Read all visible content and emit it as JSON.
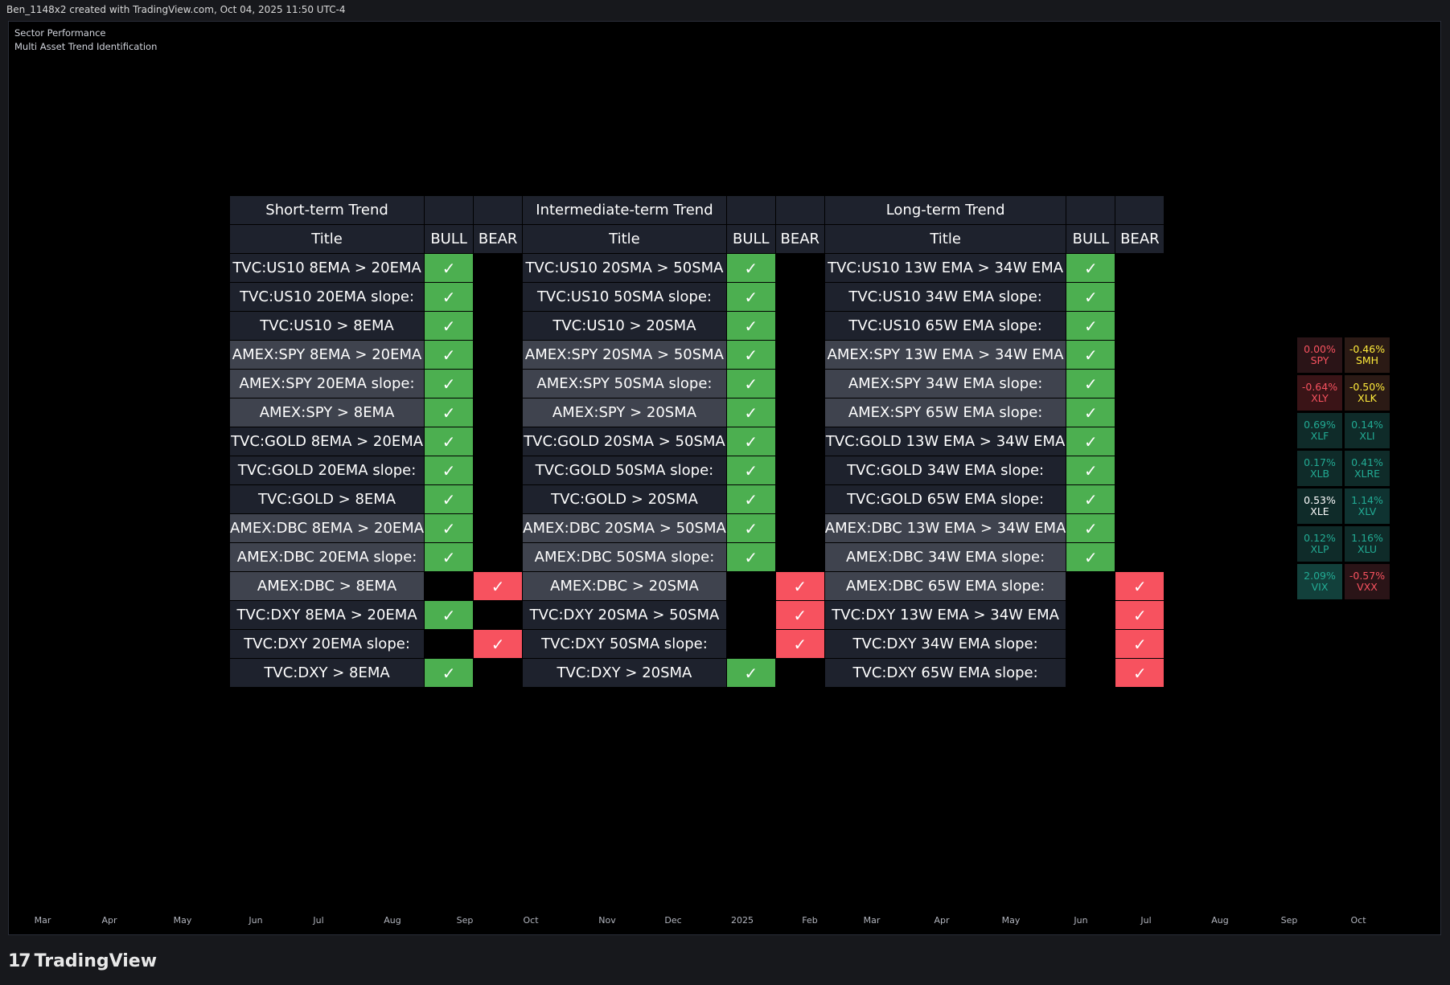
{
  "header": {
    "text": "Ben_1148x2 created with TradingView.com, Oct 04, 2025 11:50 UTC-4"
  },
  "indicators": [
    "Sector Performance",
    "Multi Asset Trend Identification"
  ],
  "colors": {
    "bull": "#4caf50",
    "bear": "#f7525f",
    "background": "#000000"
  },
  "table": {
    "groups": [
      {
        "title": "Short-term Trend"
      },
      {
        "title": "Intermediate-term Trend"
      },
      {
        "title": "Long-term Trend"
      }
    ],
    "col_title": "Title",
    "col_bull": "BULL",
    "col_bear": "BEAR",
    "check": "✓",
    "rows": [
      {
        "alt": false,
        "cells": [
          {
            "label": "TVC:US10 8EMA > 20EMA",
            "signal": "bull"
          },
          {
            "label": "TVC:US10 20SMA > 50SMA",
            "signal": "bull"
          },
          {
            "label": "TVC:US10 13W EMA > 34W EMA",
            "signal": "bull"
          }
        ]
      },
      {
        "alt": false,
        "cells": [
          {
            "label": "TVC:US10 20EMA slope:",
            "signal": "bull"
          },
          {
            "label": "TVC:US10 50SMA slope:",
            "signal": "bull"
          },
          {
            "label": "TVC:US10 34W EMA slope:",
            "signal": "bull"
          }
        ]
      },
      {
        "alt": false,
        "cells": [
          {
            "label": "TVC:US10 > 8EMA",
            "signal": "bull"
          },
          {
            "label": "TVC:US10 > 20SMA",
            "signal": "bull"
          },
          {
            "label": "TVC:US10 65W EMA slope:",
            "signal": "bull"
          }
        ]
      },
      {
        "alt": true,
        "cells": [
          {
            "label": "AMEX:SPY 8EMA > 20EMA",
            "signal": "bull"
          },
          {
            "label": "AMEX:SPY 20SMA > 50SMA",
            "signal": "bull"
          },
          {
            "label": "AMEX:SPY 13W EMA > 34W EMA",
            "signal": "bull"
          }
        ]
      },
      {
        "alt": true,
        "cells": [
          {
            "label": "AMEX:SPY 20EMA slope:",
            "signal": "bull"
          },
          {
            "label": "AMEX:SPY 50SMA slope:",
            "signal": "bull"
          },
          {
            "label": "AMEX:SPY 34W EMA slope:",
            "signal": "bull"
          }
        ]
      },
      {
        "alt": true,
        "cells": [
          {
            "label": "AMEX:SPY > 8EMA",
            "signal": "bull"
          },
          {
            "label": "AMEX:SPY > 20SMA",
            "signal": "bull"
          },
          {
            "label": "AMEX:SPY 65W EMA slope:",
            "signal": "bull"
          }
        ]
      },
      {
        "alt": false,
        "cells": [
          {
            "label": "TVC:GOLD 8EMA > 20EMA",
            "signal": "bull"
          },
          {
            "label": "TVC:GOLD 20SMA > 50SMA",
            "signal": "bull"
          },
          {
            "label": "TVC:GOLD 13W EMA > 34W EMA",
            "signal": "bull"
          }
        ]
      },
      {
        "alt": false,
        "cells": [
          {
            "label": "TVC:GOLD 20EMA slope:",
            "signal": "bull"
          },
          {
            "label": "TVC:GOLD 50SMA slope:",
            "signal": "bull"
          },
          {
            "label": "TVC:GOLD 34W EMA slope:",
            "signal": "bull"
          }
        ]
      },
      {
        "alt": false,
        "cells": [
          {
            "label": "TVC:GOLD > 8EMA",
            "signal": "bull"
          },
          {
            "label": "TVC:GOLD > 20SMA",
            "signal": "bull"
          },
          {
            "label": "TVC:GOLD 65W EMA slope:",
            "signal": "bull"
          }
        ]
      },
      {
        "alt": true,
        "cells": [
          {
            "label": "AMEX:DBC 8EMA > 20EMA",
            "signal": "bull"
          },
          {
            "label": "AMEX:DBC 20SMA > 50SMA",
            "signal": "bull"
          },
          {
            "label": "AMEX:DBC 13W EMA > 34W EMA",
            "signal": "bull"
          }
        ]
      },
      {
        "alt": true,
        "cells": [
          {
            "label": "AMEX:DBC 20EMA slope:",
            "signal": "bull"
          },
          {
            "label": "AMEX:DBC 50SMA slope:",
            "signal": "bull"
          },
          {
            "label": "AMEX:DBC 34W EMA slope:",
            "signal": "bull"
          }
        ]
      },
      {
        "alt": true,
        "cells": [
          {
            "label": "AMEX:DBC > 8EMA",
            "signal": "bear"
          },
          {
            "label": "AMEX:DBC > 20SMA",
            "signal": "bear"
          },
          {
            "label": "AMEX:DBC 65W EMA slope:",
            "signal": "bear"
          }
        ]
      },
      {
        "alt": false,
        "cells": [
          {
            "label": "TVC:DXY 8EMA > 20EMA",
            "signal": "bull"
          },
          {
            "label": "TVC:DXY 20SMA > 50SMA",
            "signal": "bear"
          },
          {
            "label": "TVC:DXY 13W EMA > 34W EMA",
            "signal": "bear"
          }
        ]
      },
      {
        "alt": false,
        "cells": [
          {
            "label": "TVC:DXY 20EMA slope:",
            "signal": "bear"
          },
          {
            "label": "TVC:DXY 50SMA slope:",
            "signal": "bear"
          },
          {
            "label": "TVC:DXY 34W EMA slope:",
            "signal": "bear"
          }
        ]
      },
      {
        "alt": false,
        "cells": [
          {
            "label": "TVC:DXY > 8EMA",
            "signal": "bull"
          },
          {
            "label": "TVC:DXY > 20SMA",
            "signal": "bull"
          },
          {
            "label": "TVC:DXY 65W EMA slope:",
            "signal": "bear"
          }
        ]
      }
    ]
  },
  "sectors": [
    {
      "pct": "0.00%",
      "ticker": "SPY",
      "bg": "#2a1417",
      "fg": "#f7525f",
      "tickerColor": "#f7525f"
    },
    {
      "pct": "-0.46%",
      "ticker": "SMH",
      "bg": "#2b1a15",
      "fg": "#ffeb3b",
      "tickerColor": "#ffeb3b"
    },
    {
      "pct": "-0.64%",
      "ticker": "XLY",
      "bg": "#3a1417",
      "fg": "#f7525f",
      "tickerColor": "#f7525f"
    },
    {
      "pct": "-0.50%",
      "ticker": "XLK",
      "bg": "#2b1a15",
      "fg": "#ffeb3b",
      "tickerColor": "#ffeb3b"
    },
    {
      "pct": "0.69%",
      "ticker": "XLF",
      "bg": "#0f2b29",
      "fg": "#22ab94",
      "tickerColor": "#22ab94"
    },
    {
      "pct": "0.14%",
      "ticker": "XLI",
      "bg": "#0f2b29",
      "fg": "#22ab94",
      "tickerColor": "#22ab94"
    },
    {
      "pct": "0.17%",
      "ticker": "XLB",
      "bg": "#0f2b29",
      "fg": "#22ab94",
      "tickerColor": "#22ab94"
    },
    {
      "pct": "0.41%",
      "ticker": "XLRE",
      "bg": "#0f2b29",
      "fg": "#22ab94",
      "tickerColor": "#22ab94"
    },
    {
      "pct": "0.53%",
      "ticker": "XLE",
      "bg": "#0f2b29",
      "fg": "#ffffff",
      "tickerColor": "#ffffff"
    },
    {
      "pct": "1.14%",
      "ticker": "XLV",
      "bg": "#0f3331",
      "fg": "#22ab94",
      "tickerColor": "#22ab94"
    },
    {
      "pct": "0.12%",
      "ticker": "XLP",
      "bg": "#0f2b29",
      "fg": "#22ab94",
      "tickerColor": "#22ab94"
    },
    {
      "pct": "1.16%",
      "ticker": "XLU",
      "bg": "#0f2b29",
      "fg": "#22ab94",
      "tickerColor": "#22ab94"
    },
    {
      "pct": "2.09%",
      "ticker": "VIX",
      "bg": "#12403b",
      "fg": "#22ab94",
      "tickerColor": "#22ab94"
    },
    {
      "pct": "-0.57%",
      "ticker": "VXX",
      "bg": "#2a1417",
      "fg": "#f7525f",
      "tickerColor": "#f7525f"
    }
  ],
  "xaxis": [
    "Mar",
    "Apr",
    "May",
    "Jun",
    "Jul",
    "Aug",
    "Sep",
    "Oct",
    "Nov",
    "Dec",
    "2025",
    "Feb",
    "Mar",
    "Apr",
    "May",
    "Jun",
    "Jul",
    "Aug",
    "Sep",
    "Oct"
  ],
  "footer": {
    "brand": "TradingView"
  }
}
